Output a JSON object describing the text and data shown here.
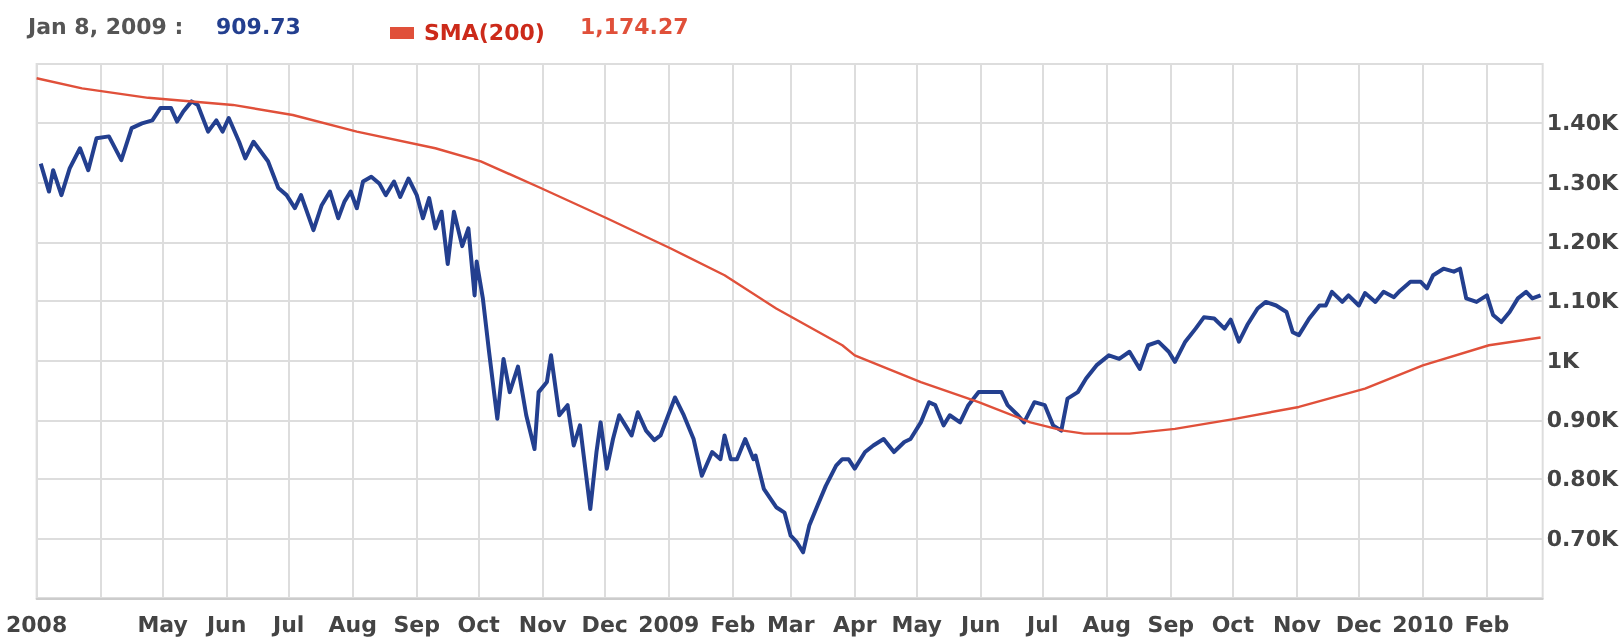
{
  "chart_data": {
    "type": "line",
    "legend": "top left",
    "grid": true,
    "annotations": [
      "Jan 8, 2009 :",
      "909.73",
      "1,174.27"
    ],
    "xlim": [
      "2008-03-01",
      "2010-02-28"
    ],
    "xticks": [
      {
        "value": "2008-03-01",
        "label": "2008"
      },
      {
        "value": "2008-04-01",
        "label": null
      },
      {
        "value": "2008-05-01",
        "label": "May"
      },
      {
        "value": "2008-06-01",
        "label": "Jun"
      },
      {
        "value": "2008-07-01",
        "label": "Jul"
      },
      {
        "value": "2008-08-01",
        "label": "Aug"
      },
      {
        "value": "2008-09-01",
        "label": "Sep"
      },
      {
        "value": "2008-10-01",
        "label": "Oct"
      },
      {
        "value": "2008-11-01",
        "label": "Nov"
      },
      {
        "value": "2008-12-01",
        "label": "Dec"
      },
      {
        "value": "2009-01-01",
        "label": "2009"
      },
      {
        "value": "2009-02-01",
        "label": "Feb"
      },
      {
        "value": "2009-03-01",
        "label": "Mar"
      },
      {
        "value": "2009-04-01",
        "label": "Apr"
      },
      {
        "value": "2009-05-01",
        "label": "May"
      },
      {
        "value": "2009-06-01",
        "label": "Jun"
      },
      {
        "value": "2009-07-01",
        "label": "Jul"
      },
      {
        "value": "2009-08-01",
        "label": "Aug"
      },
      {
        "value": "2009-09-01",
        "label": "Sep"
      },
      {
        "value": "2009-10-01",
        "label": "Oct"
      },
      {
        "value": "2009-11-01",
        "label": "Nov"
      },
      {
        "value": "2009-12-01",
        "label": "Dec"
      },
      {
        "value": "2010-01-01",
        "label": "2010"
      },
      {
        "value": "2010-02-01",
        "label": "Feb"
      }
    ],
    "ylim": [
      600,
      1500
    ],
    "yticks": [
      {
        "value": 700,
        "label": "0.70K"
      },
      {
        "value": 800,
        "label": "0.80K"
      },
      {
        "value": 900,
        "label": "0.90K"
      },
      {
        "value": 1000,
        "label": "1K"
      },
      {
        "value": 1100,
        "label": "1.10K"
      },
      {
        "value": 1200,
        "label": "1.20K"
      },
      {
        "value": 1300,
        "label": "1.30K"
      },
      {
        "value": 1400,
        "label": "1.40K"
      }
    ],
    "series": [
      {
        "color": "#233f8f",
        "x": [
          "2008-03-03",
          "2008-03-07",
          "2008-03-09",
          "2008-03-13",
          "2008-03-17",
          "2008-03-22",
          "2008-03-26",
          "2008-03-30",
          "2008-04-05",
          "2008-04-11",
          "2008-04-16",
          "2008-04-21",
          "2008-04-26",
          "2008-04-30",
          "2008-05-05",
          "2008-05-08",
          "2008-05-11",
          "2008-05-15",
          "2008-05-18",
          "2008-05-23",
          "2008-05-27",
          "2008-05-30",
          "2008-06-02",
          "2008-06-07",
          "2008-06-10",
          "2008-06-14",
          "2008-06-21",
          "2008-06-26",
          "2008-06-30",
          "2008-07-04",
          "2008-07-07",
          "2008-07-13",
          "2008-07-17",
          "2008-07-21",
          "2008-07-25",
          "2008-07-28",
          "2008-07-31",
          "2008-08-03",
          "2008-08-06",
          "2008-08-10",
          "2008-08-14",
          "2008-08-17",
          "2008-08-21",
          "2008-08-24",
          "2008-08-28",
          "2008-09-01",
          "2008-09-04",
          "2008-09-07",
          "2008-09-10",
          "2008-09-13",
          "2008-09-16",
          "2008-09-19",
          "2008-09-23",
          "2008-09-26",
          "2008-09-29",
          "2008-09-30",
          "2008-10-03",
          "2008-10-06",
          "2008-10-10",
          "2008-10-13",
          "2008-10-16",
          "2008-10-20",
          "2008-10-24",
          "2008-10-28",
          "2008-10-30",
          "2008-11-03",
          "2008-11-05",
          "2008-11-09",
          "2008-11-13",
          "2008-11-16",
          "2008-11-19",
          "2008-11-24",
          "2008-11-27",
          "2008-11-29",
          "2008-12-02",
          "2008-12-05",
          "2008-12-08",
          "2008-12-11",
          "2008-12-14",
          "2008-12-17",
          "2008-12-21",
          "2008-12-25",
          "2008-12-28",
          "2009-01-04",
          "2009-01-08",
          "2009-01-13",
          "2009-01-17",
          "2009-01-22",
          "2009-01-26",
          "2009-01-28",
          "2009-01-31",
          "2009-02-03",
          "2009-02-07",
          "2009-02-11",
          "2009-02-12",
          "2009-02-16",
          "2009-02-22",
          "2009-02-26",
          "2009-03-01",
          "2009-03-04",
          "2009-03-07",
          "2009-03-10",
          "2009-03-14",
          "2009-03-18",
          "2009-03-23",
          "2009-03-26",
          "2009-03-29",
          "2009-04-01",
          "2009-04-06",
          "2009-04-10",
          "2009-04-15",
          "2009-04-20",
          "2009-04-25",
          "2009-04-28",
          "2009-05-03",
          "2009-05-07",
          "2009-05-10",
          "2009-05-14",
          "2009-05-17",
          "2009-05-22",
          "2009-05-26",
          "2009-05-31",
          "2009-06-05",
          "2009-06-11",
          "2009-06-14",
          "2009-06-19",
          "2009-06-22",
          "2009-06-27",
          "2009-07-02",
          "2009-07-06",
          "2009-07-10",
          "2009-07-13",
          "2009-07-18",
          "2009-07-22",
          "2009-07-27",
          "2009-08-02",
          "2009-08-07",
          "2009-08-12",
          "2009-08-17",
          "2009-08-21",
          "2009-08-26",
          "2009-08-31",
          "2009-09-03",
          "2009-09-08",
          "2009-09-13",
          "2009-09-17",
          "2009-09-22",
          "2009-09-27",
          "2009-09-30",
          "2009-10-04",
          "2009-10-08",
          "2009-10-13",
          "2009-10-17",
          "2009-10-22",
          "2009-10-27",
          "2009-10-30",
          "2009-11-02",
          "2009-11-07",
          "2009-11-12",
          "2009-11-15",
          "2009-11-18",
          "2009-11-23",
          "2009-11-26",
          "2009-12-01",
          "2009-12-04",
          "2009-12-09",
          "2009-12-13",
          "2009-12-18",
          "2009-12-21",
          "2009-12-26",
          "2009-12-31",
          "2010-01-03",
          "2010-01-06",
          "2010-01-11",
          "2010-01-16",
          "2010-01-19",
          "2010-01-22",
          "2010-01-27",
          "2010-02-01",
          "2010-02-04",
          "2010-02-08",
          "2010-02-12",
          "2010-02-16",
          "2010-02-20",
          "2010-02-23",
          "2010-02-27"
        ],
        "values": [
          1332,
          1285,
          1321,
          1279,
          1324,
          1358,
          1321,
          1375,
          1378,
          1338,
          1392,
          1400,
          1405,
          1426,
          1426,
          1403,
          1420,
          1437,
          1431,
          1386,
          1405,
          1386,
          1409,
          1369,
          1341,
          1369,
          1336,
          1291,
          1279,
          1257,
          1279,
          1220,
          1262,
          1285,
          1240,
          1268,
          1285,
          1257,
          1302,
          1310,
          1298,
          1279,
          1302,
          1276,
          1307,
          1279,
          1240,
          1274,
          1223,
          1251,
          1163,
          1251,
          1193,
          1223,
          1110,
          1167,
          1105,
          1015,
          902,
          1003,
          947,
          990,
          908,
          851,
          947,
          964,
          1009,
          908,
          925,
          857,
          891,
          750,
          846,
          896,
          818,
          868,
          908,
          891,
          874,
          913,
          882,
          866,
          874,
          938,
          910,
          868,
          806,
          846,
          834,
          874,
          834,
          834,
          868,
          834,
          840,
          784,
          753,
          744,
          705,
          694,
          677,
          722,
          756,
          789,
          823,
          834,
          834,
          818,
          846,
          857,
          868,
          846,
          863,
          868,
          896,
          930,
          925,
          891,
          908,
          896,
          925,
          947,
          947,
          947,
          925,
          908,
          896,
          930,
          925,
          891,
          882,
          936,
          947,
          970,
          992,
          1009,
          1003,
          1015,
          986,
          1026,
          1032,
          1015,
          998,
          1032,
          1054,
          1073,
          1071,
          1054,
          1069,
          1032,
          1060,
          1088,
          1099,
          1093,
          1082,
          1048,
          1043,
          1071,
          1093,
          1093,
          1116,
          1099,
          1110,
          1093,
          1114,
          1099,
          1116,
          1107,
          1118,
          1133,
          1133,
          1122,
          1144,
          1155,
          1150,
          1155,
          1105,
          1099,
          1110,
          1077,
          1065,
          1082,
          1105,
          1116,
          1105,
          1110
        ]
      },
      {
        "name": "SMA(200)",
        "color": "#e0503a",
        "x": [
          "2008-03-01",
          "2008-03-23",
          "2008-04-24",
          "2008-06-04",
          "2008-07-03",
          "2008-08-03",
          "2008-09-10",
          "2008-10-02",
          "2008-10-31",
          "2008-12-02",
          "2009-01-02",
          "2009-01-28",
          "2009-02-22",
          "2009-03-26",
          "2009-04-01",
          "2009-05-03",
          "2009-05-31",
          "2009-06-25",
          "2009-07-11",
          "2009-07-21",
          "2009-08-12",
          "2009-09-03",
          "2009-10-02",
          "2009-11-02",
          "2009-12-04",
          "2010-01-01",
          "2010-02-02",
          "2010-02-27"
        ],
        "values": [
          1476,
          1459,
          1443,
          1431,
          1414,
          1386,
          1358,
          1336,
          1291,
          1240,
          1189,
          1144,
          1088,
          1026,
          1009,
          964,
          930,
          896,
          882,
          877,
          877,
          885,
          902,
          922,
          953,
          992,
          1026,
          1039
        ]
      }
    ]
  }
}
